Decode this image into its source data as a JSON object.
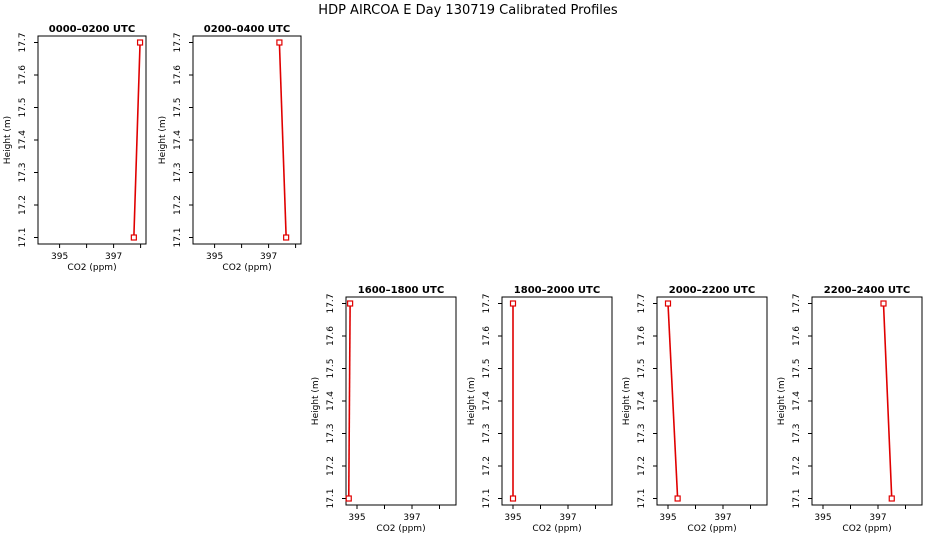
{
  "title": "HDP AIRCOA E  Day 130719  Calibrated Profiles",
  "colors": {
    "series": "#e00000",
    "axis": "#000000"
  },
  "chart_data": [
    {
      "type": "line",
      "title": "0000–0200 UTC",
      "xlabel": "CO2 (ppm)",
      "ylabel": "Height (m)",
      "xlim": [
        394.2,
        398.2
      ],
      "ylim": [
        17.08,
        17.72
      ],
      "xticks": [
        395,
        396,
        397,
        398
      ],
      "xticklabels": [
        "395",
        "",
        "397",
        ""
      ],
      "yticks": [
        17.1,
        17.2,
        17.3,
        17.4,
        17.5,
        17.6,
        17.7
      ],
      "yticklabels": [
        "17.1",
        "17.2",
        "17.3",
        "17.4",
        "17.5",
        "17.6",
        "17.7"
      ],
      "series": [
        {
          "x": [
            397.75,
            397.98
          ],
          "y": [
            17.1,
            17.7
          ]
        }
      ]
    },
    {
      "type": "line",
      "title": "0200–0400 UTC",
      "xlabel": "CO2 (ppm)",
      "ylabel": "Height (m)",
      "xlim": [
        394.2,
        398.2
      ],
      "ylim": [
        17.08,
        17.72
      ],
      "xticks": [
        395,
        396,
        397,
        398
      ],
      "xticklabels": [
        "395",
        "",
        "397",
        ""
      ],
      "yticks": [
        17.1,
        17.2,
        17.3,
        17.4,
        17.5,
        17.6,
        17.7
      ],
      "yticklabels": [
        "17.1",
        "17.2",
        "17.3",
        "17.4",
        "17.5",
        "17.6",
        "17.7"
      ],
      "series": [
        {
          "x": [
            397.65,
            397.4
          ],
          "y": [
            17.1,
            17.7
          ]
        }
      ]
    },
    {
      "type": "line",
      "title": "1600–1800 UTC",
      "xlabel": "CO2 (ppm)",
      "ylabel": "Height (m)",
      "xlim": [
        394.6,
        398.6
      ],
      "ylim": [
        17.08,
        17.72
      ],
      "xticks": [
        395,
        396,
        397,
        398
      ],
      "xticklabels": [
        "395",
        "",
        "397",
        ""
      ],
      "yticks": [
        17.1,
        17.2,
        17.3,
        17.4,
        17.5,
        17.6,
        17.7
      ],
      "yticklabels": [
        "17.1",
        "17.2",
        "17.3",
        "17.4",
        "17.5",
        "17.6",
        "17.7"
      ],
      "series": [
        {
          "x": [
            394.7,
            394.75
          ],
          "y": [
            17.1,
            17.7
          ]
        }
      ]
    },
    {
      "type": "line",
      "title": "1800–2000 UTC",
      "xlabel": "CO2 (ppm)",
      "ylabel": "Height (m)",
      "xlim": [
        394.6,
        398.6
      ],
      "ylim": [
        17.08,
        17.72
      ],
      "xticks": [
        395,
        396,
        397,
        398
      ],
      "xticklabels": [
        "395",
        "",
        "397",
        ""
      ],
      "yticks": [
        17.1,
        17.2,
        17.3,
        17.4,
        17.5,
        17.6,
        17.7
      ],
      "yticklabels": [
        "17.1",
        "17.2",
        "17.3",
        "17.4",
        "17.5",
        "17.6",
        "17.7"
      ],
      "series": [
        {
          "x": [
            395.0,
            395.0
          ],
          "y": [
            17.1,
            17.7
          ]
        }
      ]
    },
    {
      "type": "line",
      "title": "2000–2200 UTC",
      "xlabel": "CO2 (ppm)",
      "ylabel": "Height (m)",
      "xlim": [
        394.6,
        398.6
      ],
      "ylim": [
        17.08,
        17.72
      ],
      "xticks": [
        395,
        396,
        397,
        398
      ],
      "xticklabels": [
        "395",
        "",
        "397",
        ""
      ],
      "yticks": [
        17.1,
        17.2,
        17.3,
        17.4,
        17.5,
        17.6,
        17.7
      ],
      "yticklabels": [
        "17.1",
        "17.2",
        "17.3",
        "17.4",
        "17.5",
        "17.6",
        "17.7"
      ],
      "series": [
        {
          "x": [
            395.35,
            395.0
          ],
          "y": [
            17.1,
            17.7
          ]
        }
      ]
    },
    {
      "type": "line",
      "title": "2200–2400 UTC",
      "xlabel": "CO2 (ppm)",
      "ylabel": "Height (m)",
      "xlim": [
        394.6,
        398.6
      ],
      "ylim": [
        17.08,
        17.72
      ],
      "xticks": [
        395,
        396,
        397,
        398
      ],
      "xticklabels": [
        "395",
        "",
        "397",
        ""
      ],
      "yticks": [
        17.1,
        17.2,
        17.3,
        17.4,
        17.5,
        17.6,
        17.7
      ],
      "yticklabels": [
        "17.1",
        "17.2",
        "17.3",
        "17.4",
        "17.5",
        "17.6",
        "17.7"
      ],
      "series": [
        {
          "x": [
            397.5,
            397.2
          ],
          "y": [
            17.1,
            17.7
          ]
        }
      ]
    }
  ]
}
